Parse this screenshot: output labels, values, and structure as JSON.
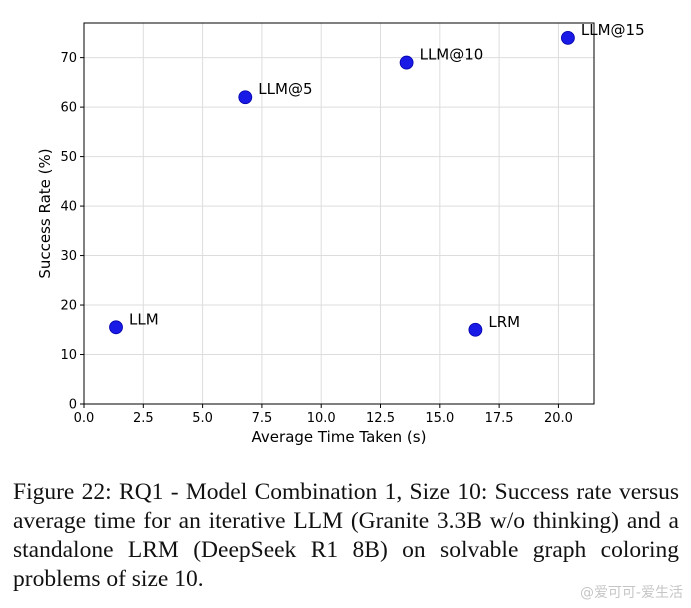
{
  "chart_data": {
    "type": "scatter",
    "title": "",
    "xlabel": "Average Time Taken (s)",
    "ylabel": "Success Rate (%)",
    "xlim": [
      0.0,
      21.5
    ],
    "ylim": [
      0,
      77
    ],
    "x_ticks": [
      0.0,
      2.5,
      5.0,
      7.5,
      10.0,
      12.5,
      15.0,
      17.5,
      20.0
    ],
    "x_tick_labels": [
      "0.0",
      "2.5",
      "5.0",
      "7.5",
      "10.0",
      "12.5",
      "15.0",
      "17.5",
      "20.0"
    ],
    "y_ticks": [
      0,
      10,
      20,
      30,
      40,
      50,
      60,
      70
    ],
    "y_tick_labels": [
      "0",
      "10",
      "20",
      "30",
      "40",
      "50",
      "60",
      "70"
    ],
    "grid": true,
    "marker_color": "#1a1ae6",
    "points": [
      {
        "label": "LLM",
        "x": 1.35,
        "y": 15.5
      },
      {
        "label": "LLM@5",
        "x": 6.8,
        "y": 62
      },
      {
        "label": "LLM@10",
        "x": 13.6,
        "y": 69
      },
      {
        "label": "LLM@15",
        "x": 20.4,
        "y": 74
      },
      {
        "label": "LRM",
        "x": 16.5,
        "y": 15
      }
    ]
  },
  "caption": {
    "text": "Figure 22: RQ1 - Model Combination 1, Size 10: Success rate versus average time for an iterative LLM (Granite 3.3B w/o thinking) and a standalone LRM (DeepSeek R1 8B) on solvable graph coloring problems of size 10."
  },
  "watermark": {
    "text": "@爱可可-爱生活"
  }
}
